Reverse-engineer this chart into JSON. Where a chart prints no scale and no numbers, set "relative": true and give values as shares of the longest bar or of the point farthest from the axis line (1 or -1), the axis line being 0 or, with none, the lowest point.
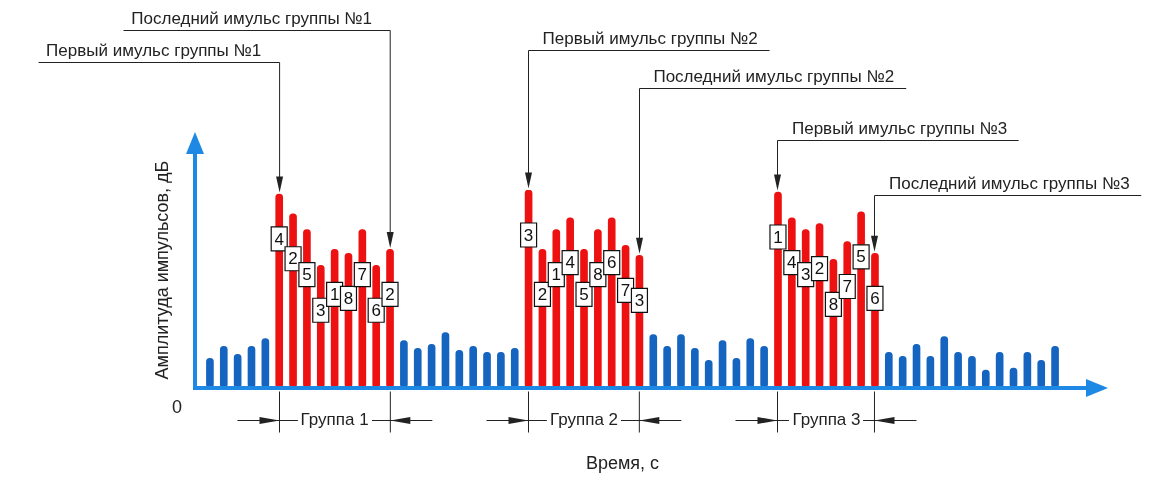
{
  "chart_data": {
    "type": "bar",
    "relative": true,
    "xlabel": "Время, с",
    "ylabel": "Амплитуда импульсов, дБ",
    "categories": [
      null,
      null,
      null,
      null,
      null,
      null,
      null,
      null,
      null,
      null,
      null,
      null,
      null,
      null,
      null,
      null,
      null,
      null,
      null,
      null,
      null,
      null,
      null,
      null,
      null,
      null,
      null,
      null,
      null,
      null,
      null,
      null,
      null,
      null,
      null,
      null,
      null,
      null,
      null,
      null,
      null,
      null,
      null,
      null,
      null,
      null,
      null,
      null,
      null,
      null,
      null,
      null,
      null,
      null,
      null,
      null,
      null,
      null,
      null,
      null,
      null,
      null
    ],
    "series": [
      {
        "values": [
          0.15,
          0.21,
          0.17,
          0.21,
          0.25,
          0.98,
          0.88,
          0.8,
          0.62,
          0.7,
          0.68,
          0.8,
          0.62,
          0.7,
          0.24,
          0.2,
          0.22,
          0.28,
          0.19,
          0.21,
          0.18,
          0.18,
          0.2,
          1,
          0.7,
          0.8,
          0.86,
          0.7,
          0.8,
          0.86,
          0.72,
          0.67,
          0.27,
          0.21,
          0.27,
          0.2,
          0.14,
          0.24,
          0.15,
          0.25,
          0.21,
          0.99,
          0.86,
          0.8,
          0.83,
          0.65,
          0.74,
          0.89,
          0.68,
          0.18,
          0.16,
          0.22,
          0.16,
          0.26,
          0.18,
          0.16,
          0.09,
          0.18,
          0.1,
          0.18,
          0.14,
          0.21
        ],
        "colors": [
          "#1565c0",
          "#1565c0",
          "#1565c0",
          "#1565c0",
          "#1565c0",
          "#ee1111",
          "#ee1111",
          "#ee1111",
          "#ee1111",
          "#ee1111",
          "#ee1111",
          "#ee1111",
          "#ee1111",
          "#ee1111",
          "#1565c0",
          "#1565c0",
          "#1565c0",
          "#1565c0",
          "#1565c0",
          "#1565c0",
          "#1565c0",
          "#1565c0",
          "#1565c0",
          "#ee1111",
          "#ee1111",
          "#ee1111",
          "#ee1111",
          "#ee1111",
          "#ee1111",
          "#ee1111",
          "#ee1111",
          "#ee1111",
          "#1565c0",
          "#1565c0",
          "#1565c0",
          "#1565c0",
          "#1565c0",
          "#1565c0",
          "#1565c0",
          "#1565c0",
          "#1565c0",
          "#ee1111",
          "#ee1111",
          "#ee1111",
          "#ee1111",
          "#ee1111",
          "#ee1111",
          "#ee1111",
          "#ee1111",
          "#1565c0",
          "#1565c0",
          "#1565c0",
          "#1565c0",
          "#1565c0",
          "#1565c0",
          "#1565c0",
          "#1565c0",
          "#1565c0",
          "#1565c0",
          "#1565c0",
          "#1565c0",
          "#1565c0"
        ]
      }
    ],
    "annotations": [
      "Первый имульс группы №1",
      "Последний имульс группы №1",
      "Первый имульс группы №2",
      "Последний имульс группы №2",
      "Первый имульс группы №3",
      "Последний имульс группы №3",
      "Группа 1",
      "Группа 2",
      "Группа 3",
      "0",
      "4",
      "2",
      "5",
      "3",
      "1",
      "8",
      "7",
      "6",
      "2",
      "3",
      "2",
      "1",
      "4",
      "5",
      "8",
      "6",
      "7",
      "3",
      "1",
      "4",
      "3",
      "2",
      "8",
      "7",
      "5",
      "6"
    ]
  }
}
